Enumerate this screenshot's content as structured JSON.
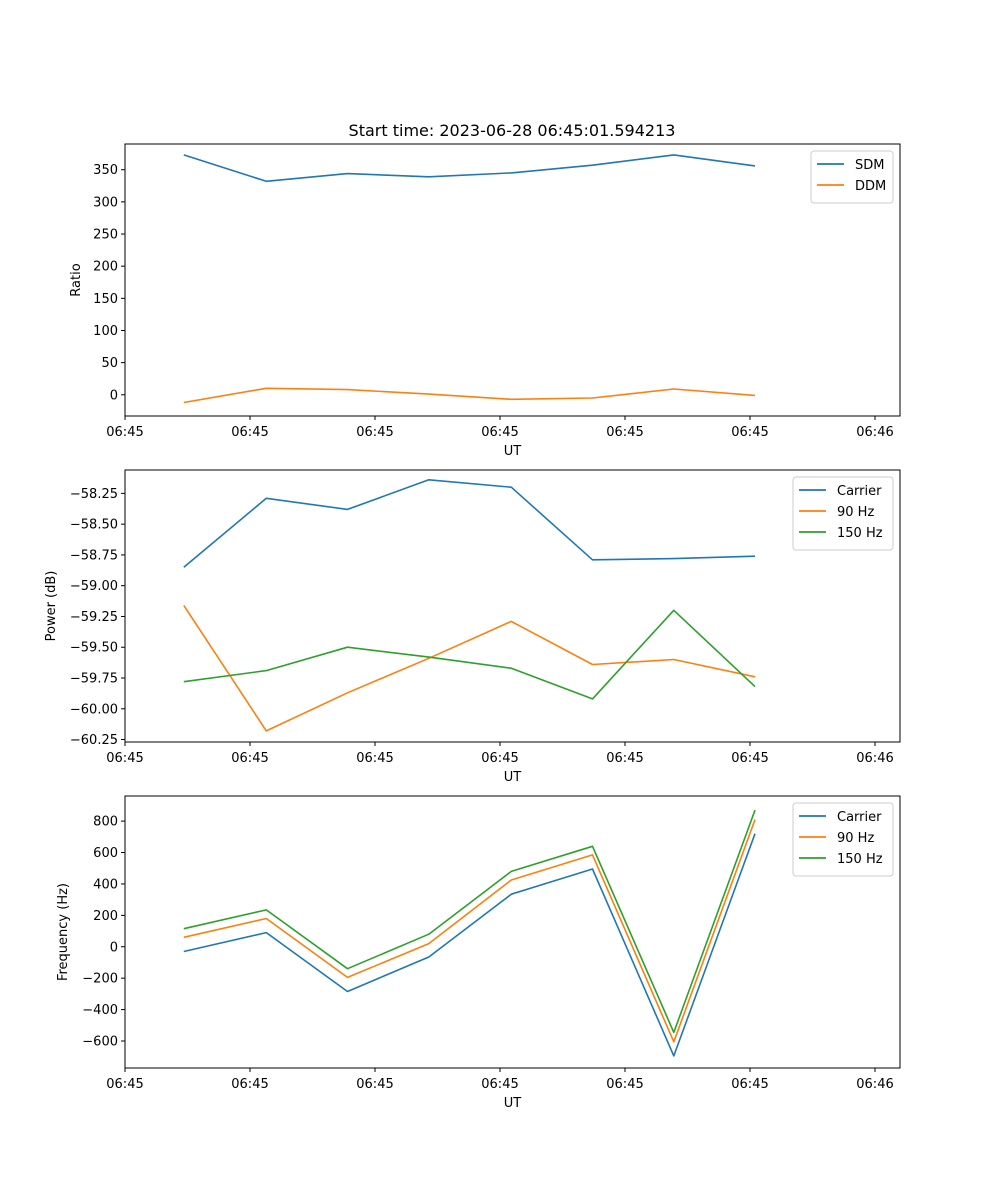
{
  "figure": {
    "title": "Start time: 2023-06-28 06:45:01.594213"
  },
  "chart_data": [
    {
      "type": "line",
      "xlabel": "UT",
      "ylabel": "Ratio",
      "xlim": [
        0,
        6.2
      ],
      "ylim": [
        -33,
        390
      ],
      "x_ticks": [
        0,
        1,
        2,
        3,
        4,
        5,
        6
      ],
      "x_tick_labels": [
        "06:45",
        "06:45",
        "06:45",
        "06:45",
        "06:45",
        "06:45",
        "06:46"
      ],
      "y_ticks": [
        0,
        50,
        100,
        150,
        200,
        250,
        300,
        350
      ],
      "y_tick_labels": [
        "0",
        "50",
        "100",
        "150",
        "200",
        "250",
        "300",
        "350"
      ],
      "x": [
        0.47,
        1.13,
        1.78,
        2.43,
        3.09,
        3.74,
        4.39,
        5.04
      ],
      "legend_position": "upper right",
      "series": [
        {
          "name": "SDM",
          "color": "#1f77b4",
          "values": [
            373,
            332,
            344,
            339,
            345,
            357,
            373,
            356
          ]
        },
        {
          "name": "DDM",
          "color": "#ff7f0e",
          "values": [
            -12,
            10,
            8,
            1,
            -7,
            -5,
            9,
            -1
          ]
        }
      ]
    },
    {
      "type": "line",
      "xlabel": "UT",
      "ylabel": "Power (dB)",
      "xlim": [
        0,
        6.2
      ],
      "ylim": [
        -60.27,
        -58.06
      ],
      "x_ticks": [
        0,
        1,
        2,
        3,
        4,
        5,
        6
      ],
      "x_tick_labels": [
        "06:45",
        "06:45",
        "06:45",
        "06:45",
        "06:45",
        "06:45",
        "06:46"
      ],
      "y_ticks": [
        -60.25,
        -60.0,
        -59.75,
        -59.5,
        -59.25,
        -59.0,
        -58.75,
        -58.5,
        -58.25
      ],
      "y_tick_labels": [
        "−60.25",
        "−60.00",
        "−59.75",
        "−59.50",
        "−59.25",
        "−59.00",
        "−58.75",
        "−58.50",
        "−58.25"
      ],
      "x": [
        0.47,
        1.13,
        1.78,
        2.43,
        3.09,
        3.74,
        4.39,
        5.04
      ],
      "legend_position": "upper right",
      "series": [
        {
          "name": "Carrier",
          "color": "#1f77b4",
          "values": [
            -58.85,
            -58.29,
            -58.38,
            -58.14,
            -58.2,
            -58.79,
            -58.78,
            -58.76
          ]
        },
        {
          "name": "90 Hz",
          "color": "#ff7f0e",
          "values": [
            -59.16,
            -60.18,
            -59.87,
            -59.59,
            -59.29,
            -59.64,
            -59.6,
            -59.74
          ]
        },
        {
          "name": "150 Hz",
          "color": "#2ca02c",
          "values": [
            -59.78,
            -59.69,
            -59.5,
            -59.58,
            -59.67,
            -59.92,
            -59.2,
            -59.82
          ]
        }
      ]
    },
    {
      "type": "line",
      "xlabel": "UT",
      "ylabel": "Frequency (Hz)",
      "xlim": [
        0,
        6.2
      ],
      "ylim": [
        -772,
        960
      ],
      "x_ticks": [
        0,
        1,
        2,
        3,
        4,
        5,
        6
      ],
      "x_tick_labels": [
        "06:45",
        "06:45",
        "06:45",
        "06:45",
        "06:45",
        "06:45",
        "06:46"
      ],
      "y_ticks": [
        -600,
        -400,
        -200,
        0,
        200,
        400,
        600,
        800
      ],
      "y_tick_labels": [
        "−600",
        "−400",
        "−200",
        "0",
        "200",
        "400",
        "600",
        "800"
      ],
      "x": [
        0.47,
        1.13,
        1.78,
        2.43,
        3.09,
        3.74,
        4.39,
        5.04
      ],
      "legend_position": "upper right",
      "series": [
        {
          "name": "Carrier",
          "color": "#1f77b4",
          "values": [
            -30,
            90,
            -285,
            -65,
            335,
            495,
            -695,
            720
          ]
        },
        {
          "name": "90 Hz",
          "color": "#ff7f0e",
          "values": [
            60,
            180,
            -195,
            20,
            425,
            585,
            -605,
            810
          ]
        },
        {
          "name": "150 Hz",
          "color": "#2ca02c",
          "values": [
            115,
            235,
            -140,
            80,
            480,
            640,
            -545,
            870
          ]
        }
      ]
    }
  ]
}
